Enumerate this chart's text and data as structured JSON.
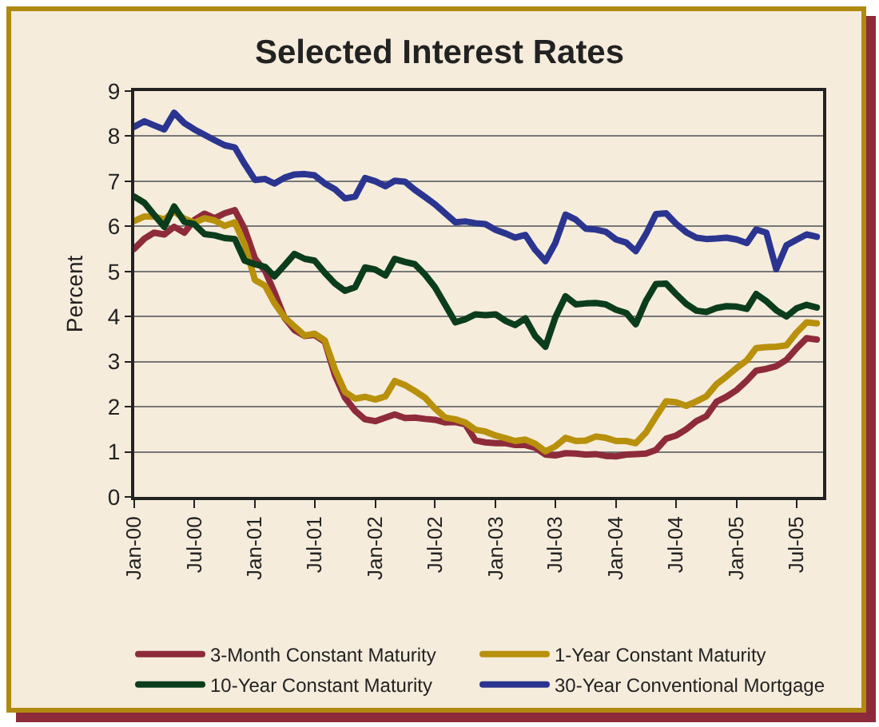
{
  "chart_data": {
    "type": "line",
    "title": "Selected Interest Rates",
    "ylabel": "Percent",
    "x": [
      "2000-01",
      "2000-02",
      "2000-03",
      "2000-04",
      "2000-05",
      "2000-06",
      "2000-07",
      "2000-08",
      "2000-09",
      "2000-10",
      "2000-11",
      "2000-12",
      "2001-01",
      "2001-02",
      "2001-03",
      "2001-04",
      "2001-05",
      "2001-06",
      "2001-07",
      "2001-08",
      "2001-09",
      "2001-10",
      "2001-11",
      "2001-12",
      "2002-01",
      "2002-02",
      "2002-03",
      "2002-04",
      "2002-05",
      "2002-06",
      "2002-07",
      "2002-08",
      "2002-09",
      "2002-10",
      "2002-11",
      "2002-12",
      "2003-01",
      "2003-02",
      "2003-03",
      "2003-04",
      "2003-05",
      "2003-06",
      "2003-07",
      "2003-08",
      "2003-09",
      "2003-10",
      "2003-11",
      "2003-12",
      "2004-01",
      "2004-02",
      "2004-03",
      "2004-04",
      "2004-05",
      "2004-06",
      "2004-07",
      "2004-08",
      "2004-09",
      "2004-10",
      "2004-11",
      "2004-12",
      "2005-01",
      "2005-02",
      "2005-03",
      "2005-04",
      "2005-05",
      "2005-06",
      "2005-07",
      "2005-08",
      "2005-09"
    ],
    "series": [
      {
        "name": "3-Month Constant Maturity",
        "color": "#8e2b3b",
        "values": [
          5.5,
          5.73,
          5.86,
          5.82,
          5.99,
          5.86,
          6.14,
          6.28,
          6.18,
          6.29,
          6.36,
          5.94,
          5.29,
          5.01,
          4.54,
          3.97,
          3.7,
          3.57,
          3.59,
          3.44,
          2.69,
          2.2,
          1.91,
          1.72,
          1.68,
          1.76,
          1.83,
          1.75,
          1.76,
          1.73,
          1.71,
          1.65,
          1.66,
          1.61,
          1.25,
          1.21,
          1.19,
          1.19,
          1.15,
          1.15,
          1.09,
          0.94,
          0.92,
          0.97,
          0.96,
          0.94,
          0.95,
          0.91,
          0.9,
          0.94,
          0.95,
          0.96,
          1.04,
          1.29,
          1.36,
          1.5,
          1.68,
          1.79,
          2.11,
          2.22,
          2.37,
          2.58,
          2.8,
          2.84,
          2.9,
          3.04,
          3.29,
          3.52,
          3.49
        ]
      },
      {
        "name": "1-Year Constant Maturity",
        "color": "#b8900c",
        "values": [
          6.12,
          6.22,
          6.22,
          6.15,
          6.33,
          6.17,
          6.08,
          6.18,
          6.13,
          6.01,
          6.09,
          5.6,
          4.81,
          4.68,
          4.3,
          3.98,
          3.78,
          3.58,
          3.62,
          3.47,
          2.82,
          2.33,
          2.18,
          2.22,
          2.16,
          2.23,
          2.57,
          2.48,
          2.35,
          2.2,
          1.96,
          1.76,
          1.72,
          1.65,
          1.49,
          1.45,
          1.36,
          1.3,
          1.24,
          1.27,
          1.18,
          1.01,
          1.12,
          1.31,
          1.24,
          1.25,
          1.34,
          1.31,
          1.24,
          1.24,
          1.19,
          1.43,
          1.78,
          2.12,
          2.1,
          2.02,
          2.12,
          2.23,
          2.5,
          2.67,
          2.86,
          3.03,
          3.3,
          3.32,
          3.33,
          3.36,
          3.64,
          3.87,
          3.85
        ]
      },
      {
        "name": "10-Year Constant Maturity",
        "color": "#0b3d1c",
        "values": [
          6.66,
          6.52,
          6.26,
          5.99,
          6.44,
          6.1,
          6.05,
          5.83,
          5.8,
          5.74,
          5.72,
          5.24,
          5.16,
          5.1,
          4.89,
          5.14,
          5.39,
          5.28,
          5.24,
          4.97,
          4.73,
          4.57,
          4.65,
          5.09,
          5.04,
          4.91,
          5.28,
          5.21,
          5.16,
          4.93,
          4.65,
          4.26,
          3.87,
          3.94,
          4.05,
          4.03,
          4.05,
          3.9,
          3.81,
          3.96,
          3.57,
          3.33,
          3.98,
          4.45,
          4.27,
          4.29,
          4.3,
          4.27,
          4.15,
          4.08,
          3.83,
          4.35,
          4.72,
          4.73,
          4.5,
          4.28,
          4.13,
          4.1,
          4.19,
          4.23,
          4.22,
          4.17,
          4.5,
          4.34,
          4.14,
          4,
          4.18,
          4.26,
          4.2
        ]
      },
      {
        "name": "30-Year Conventional Mortgage",
        "color": "#2b3590",
        "values": [
          8.21,
          8.33,
          8.24,
          8.15,
          8.52,
          8.29,
          8.15,
          8.03,
          7.91,
          7.8,
          7.75,
          7.38,
          7.03,
          7.05,
          6.95,
          7.08,
          7.15,
          7.16,
          7.13,
          6.95,
          6.82,
          6.62,
          6.66,
          7.07,
          7,
          6.89,
          7.01,
          6.99,
          6.81,
          6.65,
          6.49,
          6.29,
          6.09,
          6.11,
          6.07,
          6.05,
          5.92,
          5.84,
          5.75,
          5.81,
          5.48,
          5.23,
          5.63,
          6.26,
          6.15,
          5.95,
          5.93,
          5.88,
          5.71,
          5.64,
          5.45,
          5.83,
          6.27,
          6.29,
          6.06,
          5.87,
          5.75,
          5.72,
          5.73,
          5.75,
          5.71,
          5.63,
          5.93,
          5.86,
          5.05,
          5.58,
          5.7,
          5.82,
          5.77
        ]
      }
    ],
    "xlim": [
      "2000-01",
      "2005-09-20"
    ],
    "xticks": [
      {
        "value": "2000-01",
        "label": "Jan-00"
      },
      {
        "value": "2000-07",
        "label": "Jul-00"
      },
      {
        "value": "2001-01",
        "label": "Jan-01"
      },
      {
        "value": "2001-07",
        "label": "Jul-01"
      },
      {
        "value": "2002-01",
        "label": "Jan-02"
      },
      {
        "value": "2002-07",
        "label": "Jul-02"
      },
      {
        "value": "2003-01",
        "label": "Jan-03"
      },
      {
        "value": "2003-07",
        "label": "Jul-03"
      },
      {
        "value": "2004-01",
        "label": "Jan-04"
      },
      {
        "value": "2004-07",
        "label": "Jul-04"
      },
      {
        "value": "2005-01",
        "label": "Jan-05"
      },
      {
        "value": "2005-07",
        "label": "Jul-05"
      }
    ],
    "ylim": [
      0,
      9
    ],
    "yticks": [
      0,
      1,
      2,
      3,
      4,
      5,
      6,
      7,
      8,
      9
    ],
    "grid": "y",
    "legend": "bottom",
    "marker": "none",
    "line_style": "solid"
  }
}
